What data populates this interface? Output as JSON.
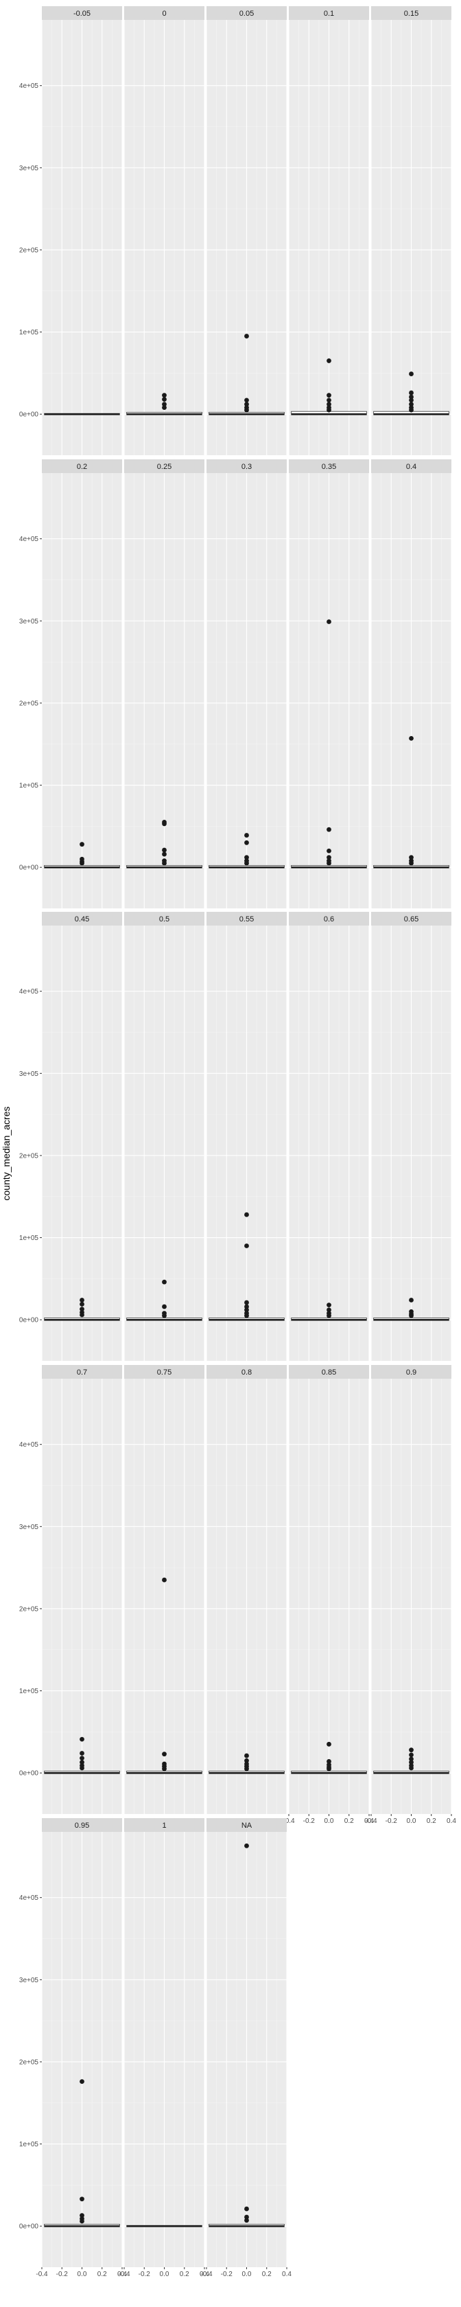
{
  "chart_data": {
    "type": "scatter",
    "subtype": "faceted-boxplot",
    "ylabel": "county_median_acres",
    "xlabel": "",
    "ylim": [
      -50000,
      480000
    ],
    "xlim": [
      -0.4,
      0.4
    ],
    "y_ticks": [
      0,
      100000,
      200000,
      300000,
      400000
    ],
    "y_tick_labels": [
      "0e+00",
      "1e+05",
      "2e+05",
      "3e+05",
      "4e+05"
    ],
    "x_ticks": [
      -0.4,
      -0.2,
      0.0,
      0.2,
      0.4
    ],
    "x_tick_labels": [
      "-0.4",
      "-0.2",
      "0.0",
      "0.2",
      "0.4"
    ],
    "grid": true,
    "facet_columns": 5,
    "facets": [
      {
        "label": "-0.05",
        "box_top": 0,
        "outliers": []
      },
      {
        "label": "0",
        "box_top": 1500,
        "outliers": [
          23000,
          18000,
          12000,
          8000
        ]
      },
      {
        "label": "0.05",
        "box_top": 1500,
        "outliers": [
          95000,
          17000,
          12000,
          8000,
          5000
        ]
      },
      {
        "label": "0.1",
        "box_top": 2500,
        "outliers": [
          65000,
          23000,
          17000,
          12000,
          8000,
          5000
        ]
      },
      {
        "label": "0.15",
        "box_top": 2500,
        "outliers": [
          49000,
          26000,
          21000,
          17000,
          12000,
          8000,
          5000
        ]
      },
      {
        "label": "0.2",
        "box_top": 1500,
        "outliers": [
          28000,
          10000,
          7000,
          5000
        ]
      },
      {
        "label": "0.25",
        "box_top": 1500,
        "outliers": [
          55000,
          53000,
          21000,
          16000,
          8000,
          5000
        ]
      },
      {
        "label": "0.3",
        "box_top": 1500,
        "outliers": [
          39000,
          30000,
          12000,
          8000,
          5000
        ]
      },
      {
        "label": "0.35",
        "box_top": 1500,
        "outliers": [
          299000,
          46000,
          20000,
          12000,
          8000,
          5000
        ]
      },
      {
        "label": "0.4",
        "box_top": 1500,
        "outliers": [
          157000,
          12000,
          8000,
          5000
        ]
      },
      {
        "label": "0.45",
        "box_top": 1500,
        "outliers": [
          24000,
          19000,
          13000,
          9000,
          6000
        ]
      },
      {
        "label": "0.5",
        "box_top": 1500,
        "outliers": [
          46000,
          16000,
          8000,
          5000
        ]
      },
      {
        "label": "0.55",
        "box_top": 1500,
        "outliers": [
          128000,
          90000,
          21000,
          16000,
          12000,
          8000,
          5000
        ]
      },
      {
        "label": "0.6",
        "box_top": 1500,
        "outliers": [
          18000,
          12000,
          8000,
          5000
        ]
      },
      {
        "label": "0.65",
        "box_top": 1500,
        "outliers": [
          24000,
          10000,
          7000,
          5000
        ]
      },
      {
        "label": "0.7",
        "box_top": 1500,
        "outliers": [
          41000,
          24000,
          18000,
          13000,
          9000,
          6000
        ]
      },
      {
        "label": "0.75",
        "box_top": 1500,
        "outliers": [
          235000,
          23000,
          11000,
          8000,
          5000
        ]
      },
      {
        "label": "0.8",
        "box_top": 1500,
        "outliers": [
          21000,
          15000,
          11000,
          8000,
          5000
        ]
      },
      {
        "label": "0.85",
        "box_top": 1500,
        "outliers": [
          35000,
          14000,
          10000,
          7000,
          5000
        ]
      },
      {
        "label": "0.9",
        "box_top": 1500,
        "outliers": [
          28000,
          22000,
          17000,
          13000,
          9000,
          6000
        ]
      },
      {
        "label": "0.95",
        "box_top": 1500,
        "outliers": [
          176000,
          33000,
          13000,
          9000,
          6000
        ]
      },
      {
        "label": "1",
        "box_top": 0,
        "outliers": []
      },
      {
        "label": "NA",
        "box_top": 1500,
        "outliers": [
          463000,
          21000,
          11000,
          7000
        ]
      }
    ]
  }
}
